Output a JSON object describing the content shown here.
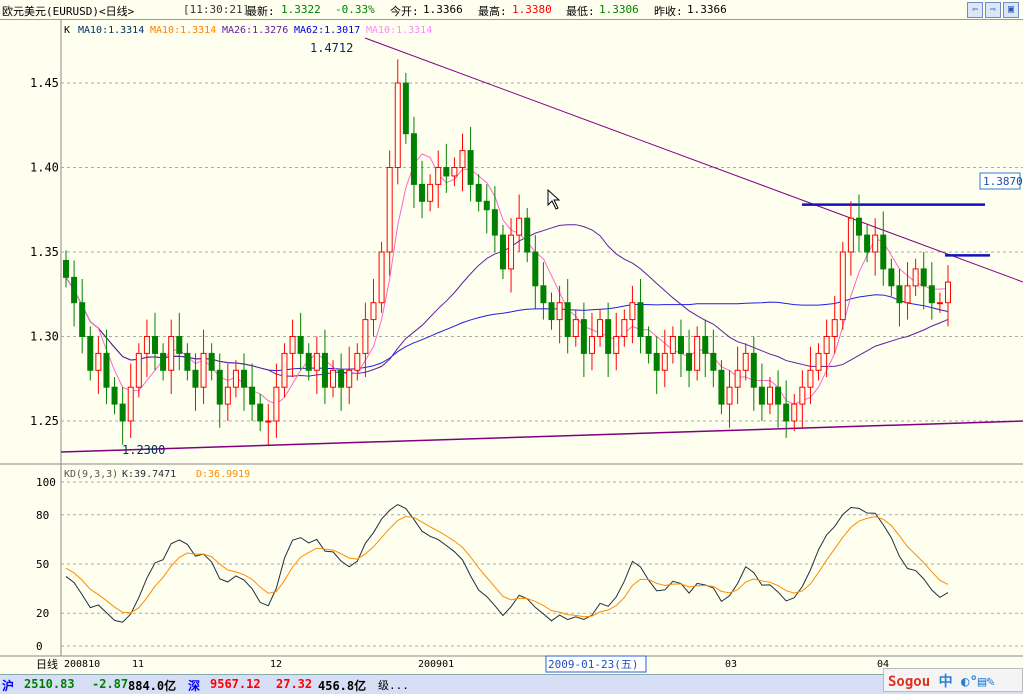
{
  "title": {
    "name": "欧元美元(EURUSD)<日线>",
    "time": "[11:30:21]",
    "last_label": "最新:",
    "last": "1.3322",
    "change": "-0.33%",
    "open_label": "今开:",
    "open": "1.3366",
    "high_label": "最高:",
    "high": "1.3380",
    "low_label": "最低:",
    "low": "1.3306",
    "prev_label": "昨收:",
    "prev": "1.3366"
  },
  "legend": {
    "k": "K",
    "ma1": "MA10:1.3314",
    "ma2": "MA10:1.3314",
    "ma3": "MA26:1.3276",
    "ma4": "MA62:1.3017",
    "ma5": "MA10:1.3314"
  },
  "kd_legend": {
    "name": "KD(9,3,3)",
    "k": "K:39.7471",
    "d": "D:36.9919"
  },
  "annotations": {
    "high": "1.4712",
    "low": "1.2300",
    "box": "1.3870"
  },
  "price_ticks": [
    "1.45",
    "1.40",
    "1.35",
    "1.30",
    "1.25"
  ],
  "kd_ticks": [
    "100",
    "80",
    "50",
    "20",
    "0"
  ],
  "x_axis": {
    "label": "日线",
    "ticks": [
      "200810",
      "11",
      "12",
      "200901",
      "03",
      "04"
    ],
    "cursor_date": "2009-01-23(五)"
  },
  "status": {
    "sh_label": "沪",
    "sh": "2510.83",
    "sh_chg": "-2.87",
    "sh_vol": "884.0亿",
    "sz_label": "深",
    "sz": "9567.12",
    "sz_chg": "27.32",
    "sz_vol": "456.8亿",
    "extra": "级..."
  },
  "ime": {
    "brand": "Sogou",
    "mode": "中"
  },
  "colors": {
    "up": "#ff0000",
    "down": "#008000",
    "ma10": "#ff66cc",
    "ma26": "#6020a0",
    "ma62": "#2020e0",
    "trend": "#800080",
    "k": "#203040",
    "d": "#ff8c00"
  },
  "chart_data": {
    "type": "candlestick",
    "ylim": [
      1.23,
      1.48
    ],
    "closes": [
      1.335,
      1.32,
      1.3,
      1.28,
      1.29,
      1.27,
      1.26,
      1.25,
      1.27,
      1.29,
      1.3,
      1.29,
      1.28,
      1.3,
      1.29,
      1.28,
      1.27,
      1.29,
      1.28,
      1.26,
      1.27,
      1.28,
      1.27,
      1.26,
      1.25,
      1.25,
      1.27,
      1.29,
      1.3,
      1.29,
      1.28,
      1.29,
      1.27,
      1.28,
      1.27,
      1.28,
      1.29,
      1.31,
      1.32,
      1.35,
      1.4,
      1.45,
      1.42,
      1.39,
      1.38,
      1.39,
      1.4,
      1.395,
      1.4,
      1.41,
      1.39,
      1.38,
      1.375,
      1.36,
      1.34,
      1.36,
      1.37,
      1.35,
      1.33,
      1.32,
      1.31,
      1.32,
      1.3,
      1.31,
      1.29,
      1.3,
      1.31,
      1.29,
      1.3,
      1.31,
      1.32,
      1.3,
      1.29,
      1.28,
      1.29,
      1.3,
      1.29,
      1.28,
      1.3,
      1.29,
      1.28,
      1.26,
      1.27,
      1.28,
      1.29,
      1.27,
      1.26,
      1.27,
      1.26,
      1.25,
      1.26,
      1.27,
      1.28,
      1.29,
      1.3,
      1.31,
      1.35,
      1.37,
      1.36,
      1.35,
      1.36,
      1.34,
      1.33,
      1.32,
      1.33,
      1.34,
      1.33,
      1.32,
      1.32,
      1.3322
    ],
    "levels": [
      1.378,
      1.348
    ]
  }
}
